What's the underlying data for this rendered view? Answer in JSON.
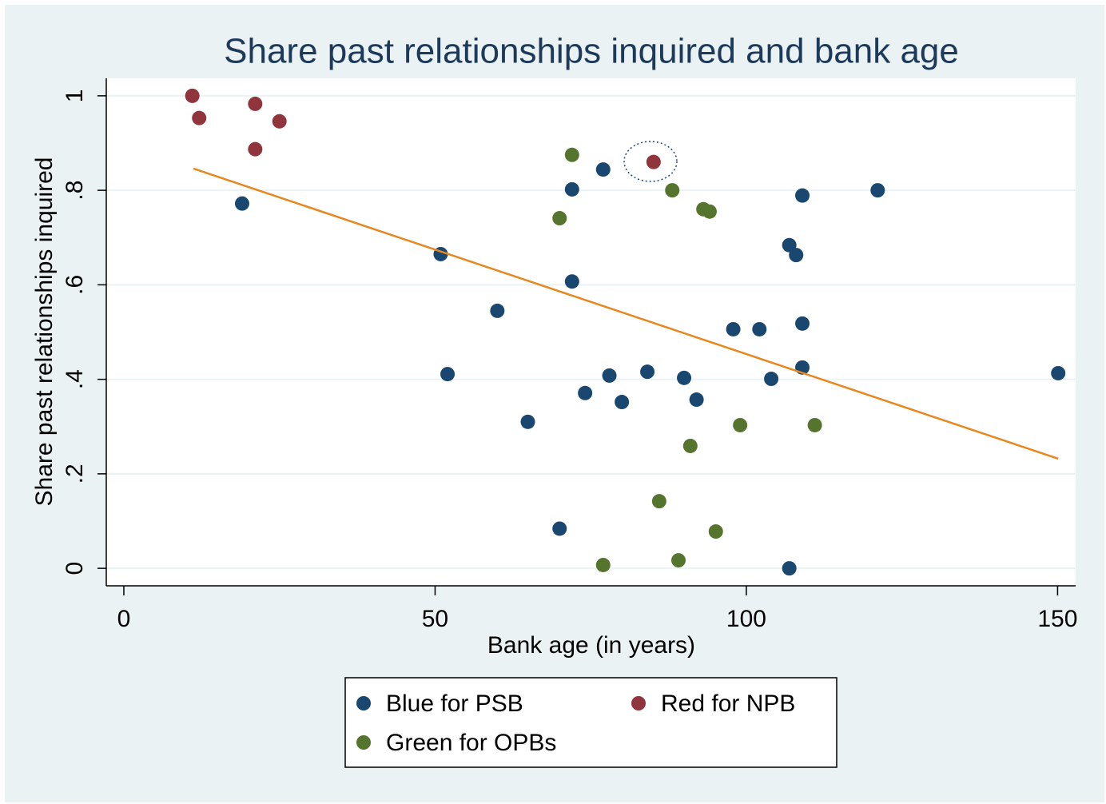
{
  "chart_data": {
    "type": "scatter",
    "title": "Share past relationships inquired and bank age",
    "x_label": "Bank age (in years)",
    "y_label": "Share past relationships inquired",
    "xlim": [
      -2.82,
      152.9
    ],
    "xticks": [
      0,
      50,
      100,
      150
    ],
    "ylim": [
      -0.037,
      1.037
    ],
    "yticks": [
      0,
      {
        "value": 0.2,
        "label": ".2"
      },
      {
        "value": 0.4,
        "label": ".4"
      },
      {
        "value": 0.6,
        "label": ".6"
      },
      {
        "value": 0.8,
        "label": ".8"
      },
      1
    ],
    "grid": true,
    "series": [
      {
        "name": "Blue for PSB",
        "color": "#1a476f",
        "x": [
          19.0,
          50.9,
          72.0,
          77.0,
          72.0,
          60.0,
          52.0,
          64.9,
          70.0,
          74.1,
          78.0,
          80.0,
          84.1,
          90.0,
          92.0,
          97.9,
          102.1,
          104.0,
          109.0,
          109.0,
          109.0,
          106.9,
          108.0,
          121.1,
          150.1,
          106.9
        ],
        "values": [
          0.772,
          0.665,
          0.802,
          0.844,
          0.607,
          0.545,
          0.411,
          0.31,
          0.084,
          0.371,
          0.408,
          0.352,
          0.416,
          0.403,
          0.357,
          0.506,
          0.506,
          0.401,
          0.518,
          0.425,
          0.789,
          0.684,
          0.663,
          0.8,
          0.413,
          0.0
        ]
      },
      {
        "name": "Red for NPB",
        "color": "#90353b",
        "x": [
          11.0,
          12.1,
          21.1,
          25.0,
          21.1,
          85.1
        ],
        "values": [
          1.0,
          0.953,
          0.983,
          0.946,
          0.887,
          0.86
        ]
      },
      {
        "name": "Green for OPBs",
        "color": "#55752f",
        "x": [
          72.0,
          70.0,
          88.1,
          93.1,
          94.1,
          99.0,
          111.0,
          91.0,
          86.0,
          95.1,
          77.0,
          89.1
        ],
        "values": [
          0.875,
          0.741,
          0.8,
          0.76,
          0.755,
          0.303,
          0.303,
          0.259,
          0.142,
          0.078,
          0.007,
          0.017
        ]
      }
    ],
    "fit_line": {
      "x": [
        11.2,
        150.1
      ],
      "values": [
        0.846,
        0.232
      ],
      "color": "#e8871e"
    }
  }
}
